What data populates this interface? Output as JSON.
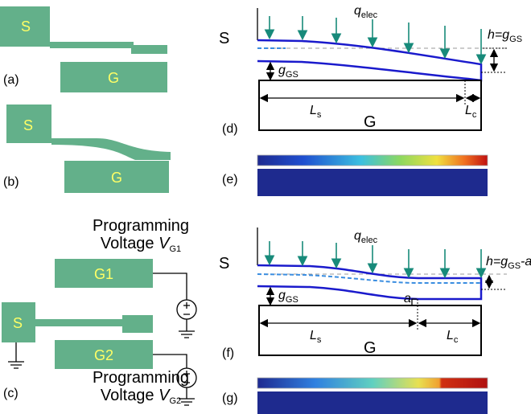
{
  "panel_a": {
    "label": "(a)",
    "source": "S",
    "gate": "G"
  },
  "panel_b": {
    "label": "(b)",
    "source": "S",
    "gate": "G"
  },
  "panel_c": {
    "label": "(c)",
    "source": "S",
    "gate1": "G1",
    "gate2": "G2",
    "caption1": {
      "line1": "Programming",
      "line2": "Voltage ",
      "symbol": "V",
      "sub": "G1"
    },
    "caption2": {
      "line1": "Programming",
      "line2": "Voltage ",
      "symbol": "V",
      "sub": "G2"
    }
  },
  "panel_d": {
    "label": "(d)",
    "source": "S",
    "gate": "G",
    "load": {
      "symbol": "q",
      "sub": "elec"
    },
    "height": {
      "text": "h=g",
      "sub": "GS"
    },
    "gap": {
      "symbol": "g",
      "sub": "GS"
    },
    "ls": {
      "symbol": "L",
      "sub": "s"
    },
    "lc": {
      "symbol": "L",
      "sub": "c"
    }
  },
  "panel_e": {
    "label": "(e)"
  },
  "panel_f": {
    "label": "(f)",
    "source": "S",
    "gate": "G",
    "load": {
      "symbol": "q",
      "sub": "elec"
    },
    "height": {
      "text": "h=g",
      "sub": "GS",
      "suffix": "-a"
    },
    "gap": {
      "symbol": "g",
      "sub": "GS"
    },
    "step": "a",
    "ls": {
      "symbol": "L",
      "sub": "s"
    },
    "lc": {
      "symbol": "L",
      "sub": "c"
    }
  },
  "panel_g": {
    "label": "(g)"
  }
}
